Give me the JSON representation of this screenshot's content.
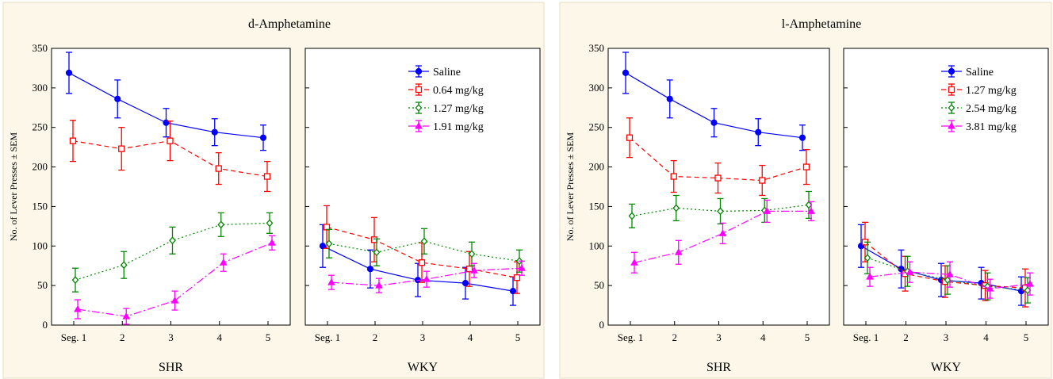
{
  "ylabel": "No. of Lever Presses ± SEM",
  "chart_data": [
    {
      "type": "line",
      "title": "d-Amphetamine",
      "ylabel": "No. of Lever Presses ± SEM",
      "ylim": [
        0,
        350
      ],
      "yticks": [
        "0",
        "50",
        "100",
        "150",
        "200",
        "250",
        "300",
        "350"
      ],
      "categories": [
        "Seg. 1",
        "2",
        "3",
        "4",
        "5"
      ],
      "legend_position": "top-right of WKY panel",
      "panels": [
        {
          "xlabel": "SHR",
          "series": [
            {
              "name": "Saline",
              "values": [
                319,
                286,
                256,
                244,
                237
              ],
              "sem": [
                26,
                24,
                18,
                17,
                16
              ]
            },
            {
              "name": "0.64 mg/kg",
              "values": [
                233,
                223,
                233,
                198,
                188
              ],
              "sem": [
                26,
                27,
                25,
                20,
                19
              ]
            },
            {
              "name": "1.27 mg/kg",
              "values": [
                57,
                76,
                107,
                127,
                129
              ],
              "sem": [
                15,
                17,
                17,
                15,
                13
              ]
            },
            {
              "name": "1.91 mg/kg",
              "values": [
                20,
                11,
                31,
                79,
                104
              ],
              "sem": [
                12,
                10,
                12,
                11,
                9
              ]
            }
          ]
        },
        {
          "xlabel": "WKY",
          "series": [
            {
              "name": "Saline",
              "values": [
                100,
                71,
                57,
                53,
                43
              ],
              "sem": [
                27,
                24,
                21,
                20,
                18
              ]
            },
            {
              "name": "0.64 mg/kg",
              "values": [
                124,
                108,
                79,
                71,
                60
              ],
              "sem": [
                27,
                28,
                25,
                22,
                20
              ]
            },
            {
              "name": "1.27 mg/kg",
              "values": [
                103,
                92,
                106,
                90,
                81
              ],
              "sem": [
                18,
                17,
                16,
                15,
                14
              ]
            },
            {
              "name": "1.91 mg/kg",
              "values": [
                54,
                50,
                58,
                69,
                72
              ],
              "sem": [
                9,
                9,
                10,
                9,
                9
              ]
            }
          ]
        }
      ]
    },
    {
      "type": "line",
      "title": "l-Amphetamine",
      "ylabel": "No. of Lever Presses ± SEM",
      "ylim": [
        0,
        350
      ],
      "yticks": [
        "0",
        "50",
        "100",
        "150",
        "200",
        "250",
        "300",
        "350"
      ],
      "categories": [
        "Seg. 1",
        "2",
        "3",
        "4",
        "5"
      ],
      "legend_position": "top-right of WKY panel",
      "panels": [
        {
          "xlabel": "SHR",
          "series": [
            {
              "name": "Saline",
              "values": [
                319,
                286,
                256,
                244,
                237
              ],
              "sem": [
                26,
                24,
                18,
                17,
                16
              ]
            },
            {
              "name": "1.27 mg/kg",
              "values": [
                237,
                188,
                186,
                183,
                200
              ],
              "sem": [
                25,
                20,
                19,
                19,
                22
              ]
            },
            {
              "name": "2.54 mg/kg",
              "values": [
                138,
                148,
                144,
                145,
                152
              ],
              "sem": [
                15,
                16,
                16,
                15,
                17
              ]
            },
            {
              "name": "3.81 mg/kg",
              "values": [
                79,
                92,
                116,
                144,
                144
              ],
              "sem": [
                13,
                15,
                13,
                14,
                12
              ]
            }
          ]
        },
        {
          "xlabel": "WKY",
          "series": [
            {
              "name": "Saline",
              "values": [
                100,
                71,
                57,
                53,
                43
              ],
              "sem": [
                27,
                24,
                21,
                20,
                18
              ]
            },
            {
              "name": "1.27 mg/kg",
              "values": [
                105,
                65,
                55,
                50,
                47
              ],
              "sem": [
                25,
                22,
                20,
                19,
                24
              ]
            },
            {
              "name": "2.54 mg/kg",
              "values": [
                85,
                68,
                57,
                49,
                44
              ],
              "sem": [
                20,
                19,
                18,
                17,
                16
              ]
            },
            {
              "name": "3.81 mg/kg",
              "values": [
                61,
                67,
                64,
                46,
                52
              ],
              "sem": [
                12,
                13,
                16,
                12,
                14
              ]
            }
          ]
        }
      ]
    }
  ],
  "colors": {
    "series": [
      "#0000ff",
      "#ff0000",
      "#008800",
      "#ff00ff"
    ],
    "panel_background": "#fdf7e9",
    "axis": "#000000"
  },
  "markers": [
    "filled-circle",
    "open-square",
    "open-diamond",
    "filled-triangle"
  ],
  "dashes": [
    "solid",
    "dashed",
    "dotted",
    "dashdot"
  ]
}
